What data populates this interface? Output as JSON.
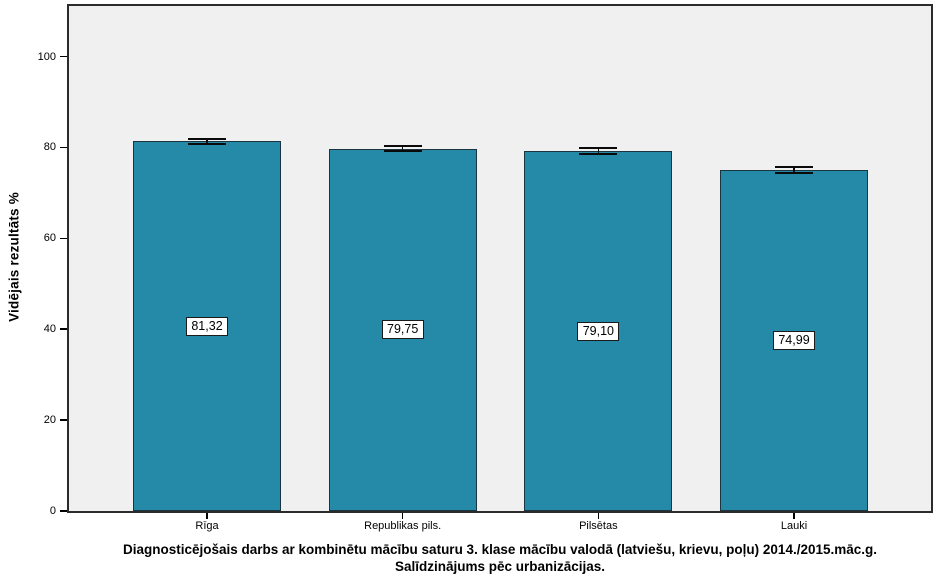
{
  "chart_data": {
    "type": "bar",
    "categories": [
      "Rīga",
      "Republikas pils.",
      "Pilsētas",
      "Lauki"
    ],
    "values": [
      81.32,
      79.75,
      79.1,
      74.99
    ],
    "value_labels": [
      "81,32",
      "79,75",
      "79,10",
      "74,99"
    ],
    "error_bars": [
      0.48,
      0.62,
      0.66,
      0.72
    ],
    "ylabel": "Vidējais rezultāts %",
    "xlabel": "",
    "yticks": [
      0,
      20,
      40,
      60,
      80,
      100
    ],
    "ylim": [
      0,
      111.5
    ],
    "grid": false,
    "legend": "none",
    "title_lines": {
      "line1": "Diagnosticējošais darbs ar kombinētu mācību saturu 3. klase mācību valodā (latviešu, krievu, poļu) 2014./2015.māc.g.",
      "line2": "Salīdzinājums pēc urbanizācijas."
    },
    "colors": {
      "bar_fill": "#2589A8",
      "bar_border": "#1B3540",
      "plot_bg": "#F0F0F0",
      "frame_border": "#2B2B2B",
      "label_box_bg": "#FFFFFF",
      "text": "#000000"
    }
  }
}
